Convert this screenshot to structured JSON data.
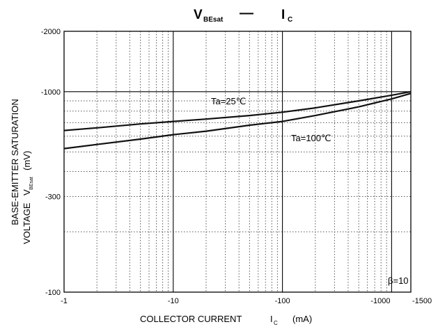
{
  "chart_data": {
    "type": "line",
    "title_main": "V",
    "title_main_sub": "BEsat",
    "title_dash": "—",
    "title_right": "I",
    "title_right_sub": "C",
    "xlabel": "COLLECTOR CURRENT",
    "xlabel_symbol": "I",
    "xlabel_symbol_sub": "C",
    "xlabel_unit": "(mA)",
    "ylabel_line1": "BASE-EMITTER SATURATION",
    "ylabel_line2_prefix": "VOLTAGE",
    "ylabel_symbol": "V",
    "ylabel_symbol_sub": "BEsat",
    "ylabel_unit": "(mV)",
    "x_scale": "log",
    "y_scale": "log",
    "xlim": [
      -1,
      -1500
    ],
    "ylim": [
      -100,
      -2000
    ],
    "x_ticks": [
      {
        "value": -1,
        "label": "-1"
      },
      {
        "value": -10,
        "label": "-10"
      },
      {
        "value": -100,
        "label": "-100"
      },
      {
        "value": -1000,
        "label": "-1000"
      },
      {
        "value": -1500,
        "label": "-1500"
      }
    ],
    "y_ticks": [
      {
        "value": -100,
        "label": "-100"
      },
      {
        "value": -300,
        "label": "-300"
      },
      {
        "value": -1000,
        "label": "-1000"
      },
      {
        "value": -2000,
        "label": "-2000"
      }
    ],
    "grid": true,
    "condition": "β=10",
    "series": [
      {
        "name": "Ta=25℃",
        "x": [
          -1,
          -2,
          -5,
          -10,
          -20,
          -50,
          -100,
          -200,
          -500,
          -1000,
          -1500
        ],
        "y": [
          -640,
          -660,
          -690,
          -710,
          -730,
          -760,
          -790,
          -830,
          -900,
          -960,
          -1000
        ]
      },
      {
        "name": "Ta=100℃",
        "x": [
          -1,
          -2,
          -5,
          -10,
          -20,
          -50,
          -100,
          -200,
          -500,
          -1000,
          -1500
        ],
        "y": [
          -520,
          -545,
          -580,
          -610,
          -635,
          -680,
          -710,
          -760,
          -840,
          -920,
          -980
        ]
      }
    ]
  }
}
